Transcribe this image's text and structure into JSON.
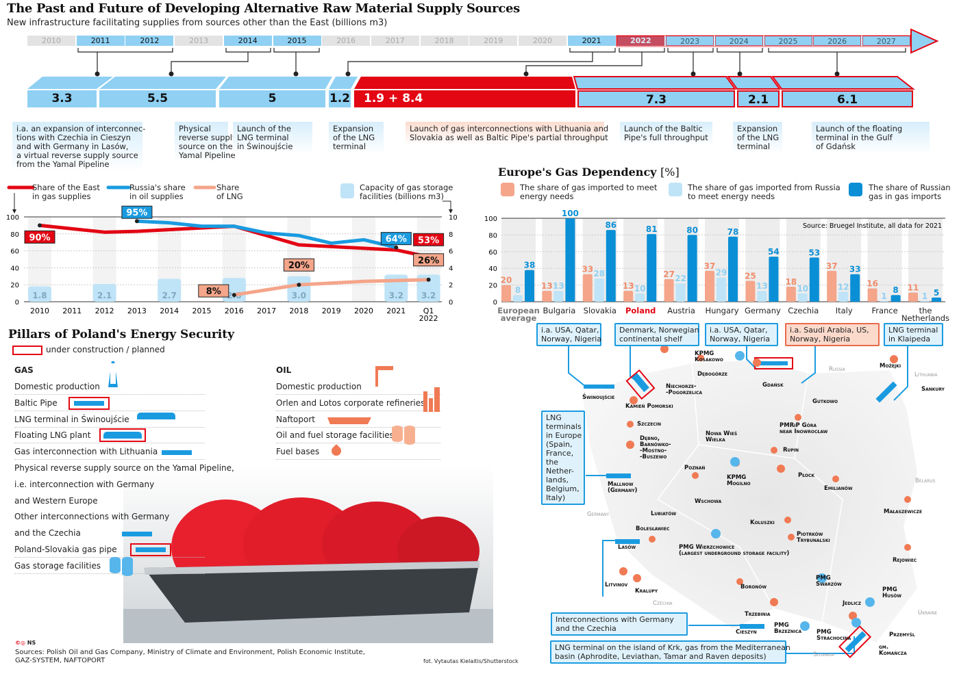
{
  "header": {
    "title": "The Past and Future of Developing Alternative Raw Material Supply Sources",
    "subtitle": "New infrastructure facilitating supplies from sources other than the East (billions m3)"
  },
  "timeline": {
    "years": [
      {
        "y": "2010",
        "s": "past"
      },
      {
        "y": "2011",
        "s": "act"
      },
      {
        "y": "2012",
        "s": "act"
      },
      {
        "y": "2013",
        "s": "past"
      },
      {
        "y": "2014",
        "s": "act"
      },
      {
        "y": "2015",
        "s": "act"
      },
      {
        "y": "2016",
        "s": "past"
      },
      {
        "y": "2017",
        "s": "past"
      },
      {
        "y": "2018",
        "s": "past"
      },
      {
        "y": "2019",
        "s": "past"
      },
      {
        "y": "2020",
        "s": "past"
      },
      {
        "y": "2021",
        "s": "act"
      },
      {
        "y": "2022",
        "s": "cur"
      },
      {
        "y": "2023",
        "s": "fut"
      },
      {
        "y": "2024",
        "s": "fut"
      },
      {
        "y": "2025",
        "s": "fut"
      },
      {
        "y": "2026",
        "s": "fut"
      },
      {
        "y": "2027",
        "s": "fut"
      }
    ],
    "segments": [
      {
        "value": "3.3"
      },
      {
        "value": "5.5"
      },
      {
        "value": "5"
      },
      {
        "value": "1.2"
      },
      {
        "value": "1.9  +  8.4"
      },
      {
        "value": "7.3"
      },
      {
        "value": "2.1"
      },
      {
        "value": "6.1"
      }
    ],
    "descriptions": [
      "i.a. an expansion of interconnec-\ntions with Czechia in Cieszyn\nand with Germany in Lasów,\na virtual reverse supply source\nfrom the Yamal Pipeline",
      "Physical\nreverse supply\nsource on the\nYamal Pipeline",
      "Launch of the\nLNG terminal\nin Świnoujście",
      "Expansion\nof the LNG\nterminal",
      "Launch of gas interconnections with Lithuania and\nSlovakia as well as Baltic Pipe's partial throughput",
      "Launch of the Baltic\nPipe's full throughput",
      "Expansion\nof the LNG\nterminal",
      "Launch of the floating\nterminal in the Gulf\nof Gdańsk"
    ],
    "colors": {
      "existing": "#8fd0f3",
      "planned_outline": "#e30613",
      "current": "#e30613"
    }
  },
  "chart_data": [
    {
      "type": "line",
      "categories": [
        "2010",
        "2011",
        "2012",
        "2013",
        "2014",
        "2015",
        "2016",
        "2017",
        "2018",
        "2019",
        "2020",
        "2021",
        "Q1\n2022"
      ],
      "ylim": [
        0,
        100
      ],
      "y2lim": [
        0,
        10
      ],
      "yticks": [
        "0",
        "20",
        "40",
        "60",
        "80",
        "100"
      ],
      "y2ticks": [
        "0",
        "2",
        "4",
        "6",
        "8",
        "10"
      ],
      "series": [
        {
          "name": "Share of the East\nin gas supplies",
          "color": "#e30613",
          "values": [
            90,
            86,
            82,
            83,
            85,
            87,
            89,
            78,
            67,
            65,
            63,
            61,
            53
          ],
          "labels": {
            "0": "90%",
            "12": "53%"
          }
        },
        {
          "name": "Russia's share\nin oil supplies",
          "color": "#1a9be0",
          "values": [
            null,
            null,
            null,
            95,
            93,
            89,
            89,
            81,
            78,
            69,
            73,
            64,
            null
          ],
          "labels": {
            "3": "95%",
            "11": "64%"
          }
        },
        {
          "name": "Share\nof LNG",
          "color": "#f4a58a",
          "values": [
            null,
            null,
            null,
            null,
            null,
            null,
            8,
            14,
            20,
            22,
            24,
            25,
            26
          ],
          "labels": {
            "6": "8%",
            "8": "20%",
            "12": "26%"
          }
        }
      ],
      "bars": {
        "name": "Capacity of gas storage\nfacilities (billions m3)",
        "color": "#bfe3f7",
        "axis": "right",
        "values": {
          "0": 1.8,
          "2": 2.1,
          "4": 2.7,
          "6": 2.8,
          "8": 3.0,
          "11": 3.2,
          "12": 3.2
        },
        "labels": {
          "0": "1.8",
          "2": "2.1",
          "4": "2.7",
          "6": "2.8",
          "8": "3.0",
          "11": "3.2",
          "12": "3.2"
        }
      }
    },
    {
      "type": "bar",
      "title": "Europe's Gas Dependency",
      "unit": "[%]",
      "source": "Source: Bruegel Institute, all data for 2021",
      "ylim": [
        0,
        100
      ],
      "yticks": [
        "0",
        "20",
        "40",
        "60",
        "80",
        "100"
      ],
      "categories": [
        "European\naverage",
        "Bulgaria",
        "Slovakia",
        "Poland",
        "Austria",
        "Hungary",
        "Germany",
        "Czechia",
        "Italy",
        "France",
        "the\nNetherlands"
      ],
      "highlight": "Poland",
      "series": [
        {
          "name": "The share of gas imported to meet\nenergy needs",
          "color": "#f4a58a",
          "values": [
            20,
            13,
            33,
            13,
            27,
            37,
            25,
            18,
            37,
            16,
            11
          ]
        },
        {
          "name": "The share of gas imported from Russia\nto meet energy needs",
          "color": "#bfe3f7",
          "values": [
            8,
            13,
            28,
            10,
            22,
            29,
            13,
            10,
            12,
            1,
            1
          ]
        },
        {
          "name": "The share of Russian\ngas in gas imports",
          "color": "#0a8fd6",
          "values": [
            38,
            100,
            86,
            81,
            80,
            78,
            54,
            53,
            33,
            8,
            5
          ]
        }
      ]
    }
  ],
  "pillars": {
    "title": "Pillars of Poland's Energy Security",
    "legend": "under construction / planned",
    "gas": {
      "heading": "GAS",
      "items": [
        {
          "t": "Domestic production",
          "i": "gas-rig"
        },
        {
          "t": "Baltic Pipe",
          "i": "pipe-planned"
        },
        {
          "t": "LNG terminal in Świnoujście",
          "i": "lng-ship"
        },
        {
          "t": "Floating LNG plant",
          "i": "lng-ship-planned"
        },
        {
          "t": "Gas interconnection with Lithuania",
          "i": "pipe"
        },
        {
          "t": "Physical reverse supply source on the Yamal Pipeline,",
          "i": ""
        },
        {
          "t": "i.e. interconnection with Germany",
          "i": ""
        },
        {
          "t": "and Western Europe",
          "i": ""
        },
        {
          "t": "Other interconnections with Germany",
          "i": ""
        },
        {
          "t": "and the Czechia",
          "i": "pipe"
        },
        {
          "t": "Poland-Slovakia gas pipe",
          "i": "pipe-planned"
        },
        {
          "t": "Gas storage facilities",
          "i": "tanks"
        }
      ]
    },
    "oil": {
      "heading": "OIL",
      "items": [
        {
          "t": "Domestic production",
          "i": "pumpjack"
        },
        {
          "t": "Orlen and Lotos corporate refineries",
          "i": "refinery"
        },
        {
          "t": "Naftoport",
          "i": "tanker"
        },
        {
          "t": "Oil and fuel storage facilities",
          "i": "oil-tanks"
        },
        {
          "t": "Fuel bases",
          "i": "drop"
        }
      ]
    }
  },
  "map": {
    "callouts": [
      "i.a. USA, Qatar,\nNorway, Nigeria",
      "Denmark, Norwegian\ncontinental shelf",
      "i.a. USA, Qatar,\nNorway, Nigeria",
      "i.a. Saudi Arabia, US,\nNorway, Nigeria",
      "LNG terminal\nin Klaipeda",
      "LNG\nterminals\nin Europe\n(Spain,\nFrance,\nthe\nNether-\nlands,\nBelgium,\nItaly)",
      "Interconnections with Germany\nand the Czechia",
      "LNG terminal on the island of Krk, gas from the Mediterranean\nbasin (Aphrodite, Leviathan, Tamar and Raven deposits)"
    ],
    "places": [
      "KPMG\nKosakowo",
      "Dębogórze",
      "Gdańsk",
      "Możejki",
      "Sankury",
      "Świnoujście",
      "Niechorze-\n-Pogorzelica",
      "Kamień Pomorski",
      "Gutkowo",
      "Szczecin",
      "PMRiP Góra\nnear Inowrocław",
      "Nowa Wieś\nWielka",
      "Dębno,\nBarnówko-\n-Mostno-\n-Buszewo",
      "Rupin",
      "Poznań",
      "KPMG\nMogilno",
      "Płock",
      "Mallnow\n(Germany)",
      "Emilianów",
      "Wschowa",
      "Lubiatów",
      "Małaszewicze",
      "Koluszki",
      "Bolesławiec",
      "Piotrków\nTrybunalski",
      "Lasów",
      "PMG Wierzchowice\n(largest underground storage facility)",
      "Rejowiec",
      "PMG\nSwarzów",
      "Litvinov",
      "Boronów",
      "Kralupy",
      "PMG\nHusów",
      "Jedlicz",
      "Trzebinia",
      "Cieszyn",
      "PMG\nBrzeźnica",
      "PMG\nStrachocina",
      "Przemyśl",
      "gm.\nKomańcza"
    ],
    "countries": [
      "Russia",
      "Lithuania",
      "Belarus",
      "Germany",
      "Czechia",
      "Ukraine",
      "Slovakia"
    ]
  },
  "footer": {
    "logo": "NS",
    "sources": "Sources: Polish Oil and Gas Company, Ministry of Climate and Environment, Polish Economic Institute,\nGAZ-SYSTEM, NAFTOPORT",
    "photo": "fot. Vytautas Kielaitis/Shutterstock"
  }
}
